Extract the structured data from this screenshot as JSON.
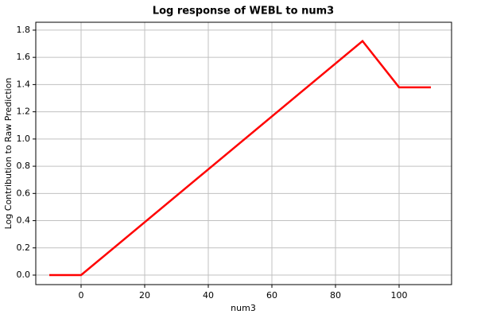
{
  "chart_data": {
    "type": "line",
    "title": "Log response of WEBL to num3",
    "xlabel": "num3",
    "ylabel": "Log Contribution to Raw Prediction",
    "x": [
      -10,
      0,
      88.5,
      100,
      110
    ],
    "series": [
      {
        "color": "#ff0000",
        "values": [
          0,
          0,
          1.72,
          1.38,
          1.38
        ]
      }
    ],
    "xlim": [
      -14.25,
      116.5
    ],
    "ylim": [
      -0.07,
      1.858
    ],
    "xticks": [
      0,
      20,
      40,
      60,
      80,
      100
    ],
    "yticks": [
      {
        "value": 0,
        "label": "0.0"
      },
      0.2,
      0.4,
      0.6,
      0.8,
      {
        "value": 1,
        "label": "1.0"
      },
      1.2,
      1.4,
      1.6,
      1.8
    ],
    "grid": true
  }
}
